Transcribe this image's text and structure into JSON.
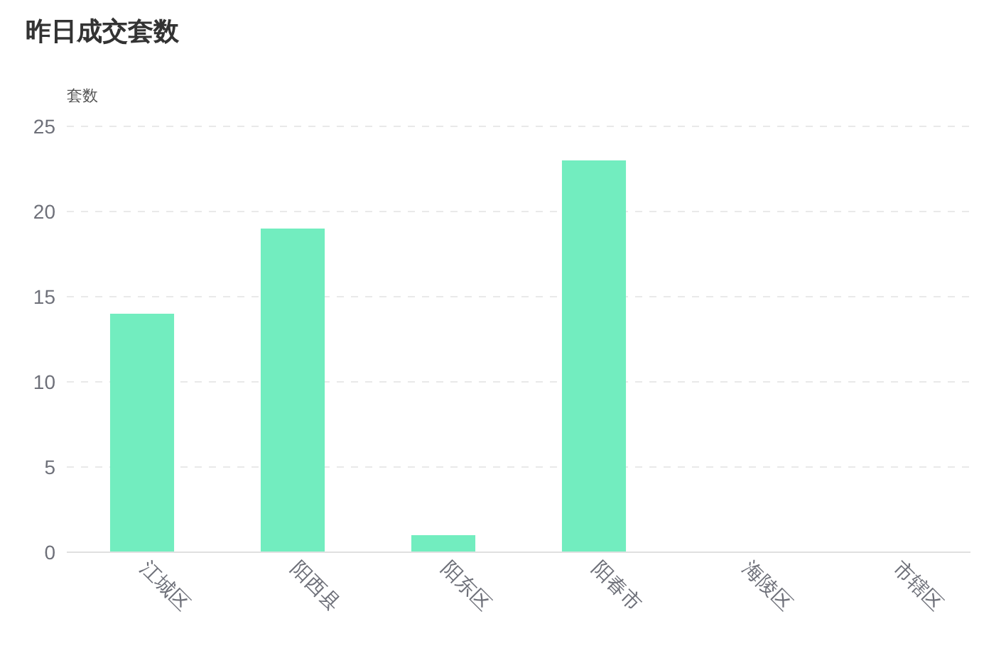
{
  "chart_data": {
    "type": "bar",
    "title": "昨日成交套数",
    "ylabel": "套数",
    "categories": [
      "江城区",
      "阳西县",
      "阳东区",
      "阳春市",
      "海陵区",
      "市辖区"
    ],
    "values": [
      14,
      19,
      1,
      23,
      0,
      0
    ],
    "color": "#72edbf",
    "ylim": [
      0,
      25
    ],
    "yticks": [
      0,
      5,
      10,
      15,
      20,
      25
    ],
    "grid": "y"
  }
}
